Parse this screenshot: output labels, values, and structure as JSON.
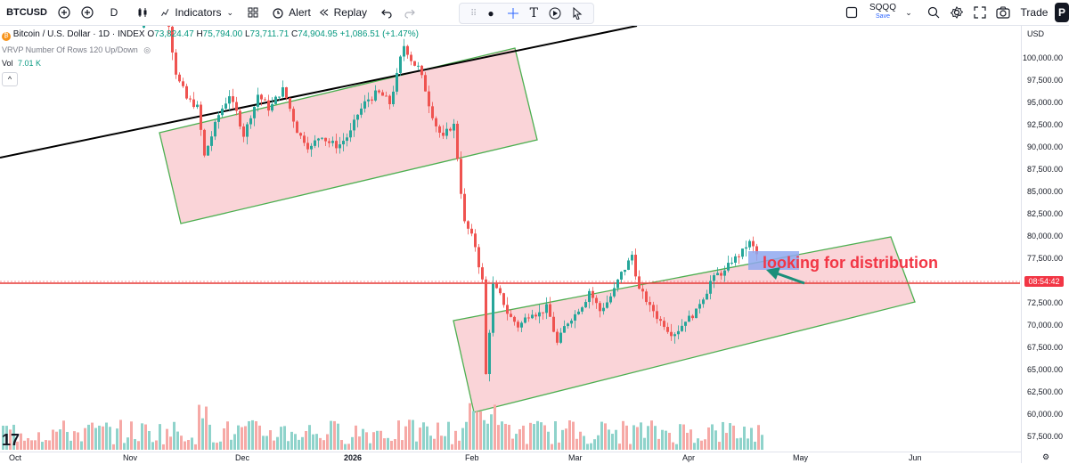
{
  "toolbar": {
    "symbol": "BTCUSD",
    "interval": "D",
    "indicators_label": "Indicators",
    "alert_label": "Alert",
    "replay_label": "Replay",
    "saved_layout": "SQQQ",
    "save_label": "Save",
    "trade_label": "Trade",
    "profile_initial": "P"
  },
  "legend": {
    "title": "Bitcoin / U.S. Dollar · 1D · INDEX",
    "open_label": "O",
    "open": "73,824.47",
    "high_label": "H",
    "high": "75,794.00",
    "low_label": "L",
    "low": "73,711.71",
    "close_label": "C",
    "close": "74,904.95",
    "change": "+1,086.51 (+1.47%)",
    "vrvp": "VRVP Number Of Rows 120 Up/Down",
    "vol_label": "Vol",
    "vol": "7.01 K"
  },
  "price_axis": {
    "currency": "USD",
    "labels": [
      "100,000.00",
      "97,500.00",
      "95,000.00",
      "92,500.00",
      "90,000.00",
      "87,500.00",
      "85,000.00",
      "82,500.00",
      "80,000.00",
      "77,500.00",
      "72,500.00",
      "70,000.00",
      "67,500.00",
      "65,000.00",
      "62,500.00",
      "60,000.00",
      "57,500.00"
    ],
    "countdown": "08:54:42"
  },
  "time_axis": {
    "labels": [
      "Oct",
      "Nov",
      "Dec",
      "2026",
      "Feb",
      "Mar",
      "Apr",
      "May",
      "Jun"
    ]
  },
  "annotation": {
    "text": "looking for distribution"
  },
  "colors": {
    "up": "#26a69a",
    "down": "#ef5350",
    "channel_fill": "#f8c5cb",
    "channel_border": "#4caf50",
    "trendline": "#000000",
    "horizontal_line": "#e53935",
    "annotation_text": "#f23645",
    "arrow": "#1b8f7a",
    "highlight_box": "#8fa8f0"
  }
}
